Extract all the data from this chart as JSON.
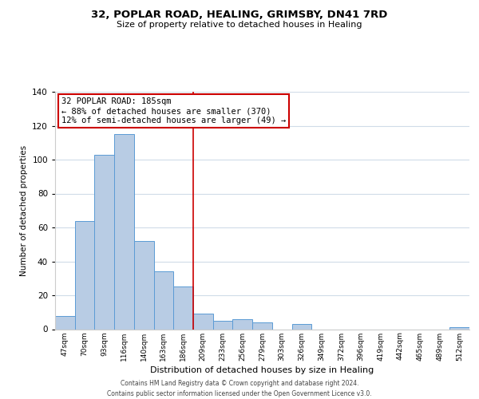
{
  "title": "32, POPLAR ROAD, HEALING, GRIMSBY, DN41 7RD",
  "subtitle": "Size of property relative to detached houses in Healing",
  "xlabel": "Distribution of detached houses by size in Healing",
  "ylabel": "Number of detached properties",
  "categories": [
    "47sqm",
    "70sqm",
    "93sqm",
    "116sqm",
    "140sqm",
    "163sqm",
    "186sqm",
    "209sqm",
    "233sqm",
    "256sqm",
    "279sqm",
    "303sqm",
    "326sqm",
    "349sqm",
    "372sqm",
    "396sqm",
    "419sqm",
    "442sqm",
    "465sqm",
    "489sqm",
    "512sqm"
  ],
  "values": [
    8,
    64,
    103,
    115,
    52,
    34,
    25,
    9,
    5,
    6,
    4,
    0,
    3,
    0,
    0,
    0,
    0,
    0,
    0,
    0,
    1
  ],
  "bar_color": "#b8cce4",
  "bar_edge_color": "#5b9bd5",
  "vline_x": 6.5,
  "vline_color": "#cc0000",
  "annotation_title": "32 POPLAR ROAD: 185sqm",
  "annotation_line1": "← 88% of detached houses are smaller (370)",
  "annotation_line2": "12% of semi-detached houses are larger (49) →",
  "annotation_box_color": "#ffffff",
  "annotation_box_edge_color": "#cc0000",
  "ylim": [
    0,
    140
  ],
  "yticks": [
    0,
    20,
    40,
    60,
    80,
    100,
    120,
    140
  ],
  "footer_line1": "Contains HM Land Registry data © Crown copyright and database right 2024.",
  "footer_line2": "Contains public sector information licensed under the Open Government Licence v3.0.",
  "background_color": "#ffffff",
  "grid_color": "#d0dce8"
}
